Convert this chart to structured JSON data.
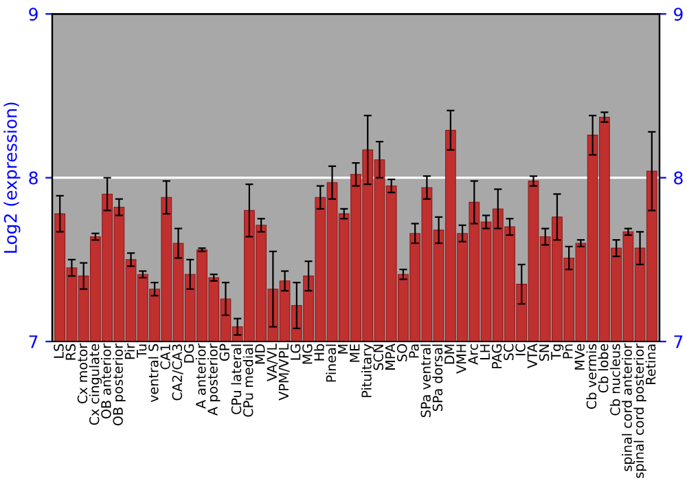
{
  "chart_data": {
    "type": "bar",
    "ylabel": "Log2 (expression)",
    "categories": [
      "LS",
      "RS",
      "Cx motor",
      "Cx cingulate",
      "OB anterior",
      "OB posterior",
      "Pir",
      "Tu",
      "ventral S",
      "CA1",
      "CA2/CA3",
      "DG",
      "A anterior",
      "A posterior",
      "GP",
      "CPu lateral",
      "CPu medial",
      "MD",
      "VA/VL",
      "VPM/VPL",
      "LG",
      "MG",
      "Hb",
      "Pineal",
      "M",
      "ME",
      "Pituitary",
      "SCN",
      "MPA",
      "SO",
      "Pa",
      "SPa ventral",
      "SPa dorsal",
      "DM",
      "VMH",
      "Arc",
      "LH",
      "PAG",
      "SC",
      "IC",
      "VTA",
      "SN",
      "Tg",
      "Pn",
      "MVe",
      "Cb vermis",
      "Cb lobe",
      "Cb nucleus",
      "spinal cord anterior",
      "spinal cord posterior",
      "Retina"
    ],
    "values": [
      7.78,
      7.45,
      7.4,
      7.64,
      7.9,
      7.82,
      7.5,
      7.41,
      7.32,
      7.88,
      7.6,
      7.41,
      7.56,
      7.39,
      7.26,
      7.09,
      7.8,
      7.71,
      7.32,
      7.37,
      7.22,
      7.4,
      7.88,
      7.97,
      7.78,
      8.02,
      8.17,
      8.11,
      7.95,
      7.41,
      7.66,
      7.94,
      7.68,
      8.29,
      7.66,
      7.85,
      7.73,
      7.81,
      7.7,
      7.35,
      7.98,
      7.64,
      7.76,
      7.51,
      7.6,
      8.26,
      8.37,
      7.57,
      7.67,
      7.57,
      8.04
    ],
    "errors": [
      0.11,
      0.05,
      0.08,
      0.02,
      0.1,
      0.05,
      0.04,
      0.02,
      0.04,
      0.1,
      0.09,
      0.09,
      0.01,
      0.02,
      0.1,
      0.05,
      0.16,
      0.04,
      0.23,
      0.06,
      0.14,
      0.09,
      0.07,
      0.1,
      0.03,
      0.07,
      0.21,
      0.11,
      0.04,
      0.03,
      0.06,
      0.07,
      0.08,
      0.12,
      0.05,
      0.13,
      0.04,
      0.12,
      0.05,
      0.12,
      0.03,
      0.05,
      0.14,
      0.07,
      0.02,
      0.12,
      0.03,
      0.05,
      0.02,
      0.1,
      0.24
    ],
    "color": "#c0302f",
    "ylim": [
      7,
      9
    ],
    "yticks": [
      7,
      8,
      9
    ],
    "y2lim": [
      7,
      9
    ],
    "y2ticks": [
      7,
      8,
      9
    ],
    "ref_lines": [
      {
        "axis": "y",
        "value": 8,
        "color": "#ffffff"
      }
    ]
  }
}
